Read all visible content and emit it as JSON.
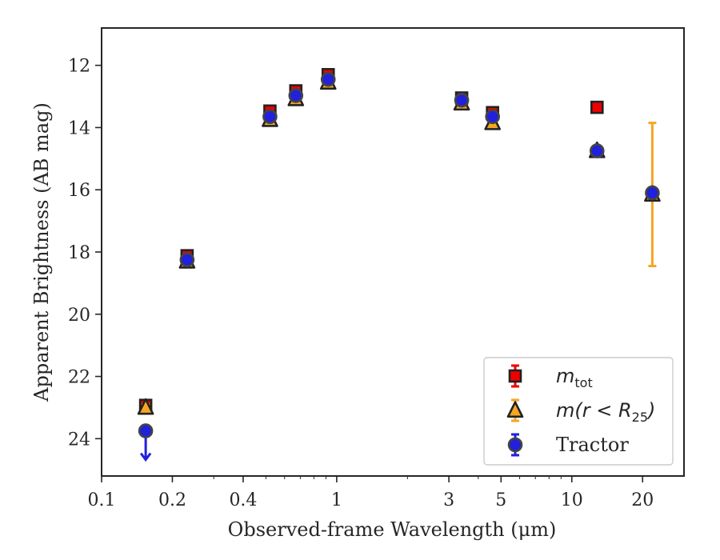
{
  "chart_data": {
    "type": "scatter",
    "xscale": "log",
    "xlim": [
      0.1,
      30
    ],
    "ylim": [
      25.2,
      10.8
    ],
    "y_inverted": true,
    "xlabel": "Observed-frame Wavelength (μm)",
    "ylabel": "Apparent Brightness (AB mag)",
    "x_ticks": [
      {
        "value": 0.1,
        "label": "0.1"
      },
      {
        "value": 0.2,
        "label": "0.2"
      },
      {
        "value": 0.4,
        "label": "0.4"
      },
      {
        "value": 1,
        "label": "1"
      },
      {
        "value": 3,
        "label": "3"
      },
      {
        "value": 5,
        "label": "5"
      },
      {
        "value": 10,
        "label": "10"
      },
      {
        "value": 20,
        "label": "20"
      }
    ],
    "y_ticks": [
      {
        "value": 12,
        "label": "12"
      },
      {
        "value": 14,
        "label": "14"
      },
      {
        "value": 16,
        "label": "16"
      },
      {
        "value": 18,
        "label": "18"
      },
      {
        "value": 20,
        "label": "20"
      },
      {
        "value": 22,
        "label": "22"
      },
      {
        "value": 24,
        "label": "24"
      }
    ],
    "legend_position": "lower-right",
    "series": [
      {
        "name": "m_tot",
        "legend_label": {
          "main": "m",
          "sub": "tot",
          "rest": ""
        },
        "marker": "square",
        "color": "#ee0000",
        "edge_color": "#222222",
        "points": [
          {
            "x": 0.154,
            "y": 22.93,
            "err": 0.1
          },
          {
            "x": 0.231,
            "y": 18.12,
            "err": 0.1
          },
          {
            "x": 0.52,
            "y": 13.47,
            "err": 0.1
          },
          {
            "x": 0.67,
            "y": 12.82,
            "err": 0.1
          },
          {
            "x": 0.92,
            "y": 12.3,
            "err": 0.1
          },
          {
            "x": 3.4,
            "y": 13.05,
            "err": 0.1
          },
          {
            "x": 4.6,
            "y": 13.52,
            "err": 0.1
          },
          {
            "x": 12.8,
            "y": 13.35,
            "err": 0.1
          }
        ]
      },
      {
        "name": "m(r<R_25)",
        "legend_label": {
          "main": "m(r < R",
          "sub": "25",
          "rest": ")"
        },
        "marker": "triangle",
        "color": "#f5a623",
        "edge_color": "#222222",
        "points": [
          {
            "x": 0.154,
            "y": 23.0,
            "err": 0.1
          },
          {
            "x": 0.231,
            "y": 18.3,
            "err": 0.1
          },
          {
            "x": 0.52,
            "y": 13.75,
            "err": 0.1
          },
          {
            "x": 0.67,
            "y": 13.08,
            "err": 0.1
          },
          {
            "x": 0.92,
            "y": 12.55,
            "err": 0.1
          },
          {
            "x": 3.4,
            "y": 13.22,
            "err": 0.1
          },
          {
            "x": 4.6,
            "y": 13.85,
            "err": 0.1
          },
          {
            "x": 12.8,
            "y": 14.75,
            "err": 0.1
          },
          {
            "x": 22.0,
            "y": 16.15,
            "err": 2.3
          }
        ]
      },
      {
        "name": "Tractor",
        "legend_label": {
          "main": "Tractor",
          "sub": "",
          "rest": ""
        },
        "marker": "circle",
        "color": "#2020dd",
        "edge_color": "#444444",
        "points": [
          {
            "x": 0.154,
            "y": 23.75,
            "err": 0.0,
            "upper_limit": true
          },
          {
            "x": 0.231,
            "y": 18.25,
            "err": 0.05
          },
          {
            "x": 0.52,
            "y": 13.65,
            "err": 0.05
          },
          {
            "x": 0.67,
            "y": 12.97,
            "err": 0.05
          },
          {
            "x": 0.92,
            "y": 12.45,
            "err": 0.05
          },
          {
            "x": 3.4,
            "y": 13.12,
            "err": 0.05
          },
          {
            "x": 4.6,
            "y": 13.65,
            "err": 0.05
          },
          {
            "x": 12.8,
            "y": 14.75,
            "err": 0.05
          },
          {
            "x": 22.0,
            "y": 16.1,
            "err": 0.05
          }
        ]
      }
    ]
  }
}
